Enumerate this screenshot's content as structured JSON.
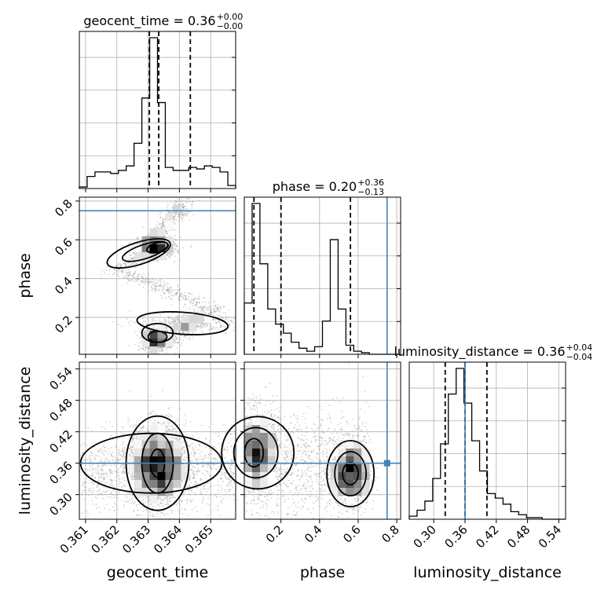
{
  "colors": {
    "truth": "#4682b4",
    "hist": "#000000",
    "samples": "#808080"
  },
  "chart_data": {
    "type": "corner",
    "parameters": [
      "geocent_time",
      "phase",
      "luminosity_distance"
    ],
    "titles": [
      {
        "text": "geocent_time = 0.36",
        "sup": "+0.00",
        "sub": "−0.00"
      },
      {
        "text": "phase = 0.20",
        "sup": "+0.36",
        "sub": "−0.13"
      },
      {
        "text": "luminosity_distance = 0.36",
        "sup": "+0.04",
        "sub": "−0.04"
      }
    ],
    "ranges": [
      [
        0.3608,
        0.3658
      ],
      [
        0.01,
        0.82
      ],
      [
        0.253,
        0.553
      ]
    ],
    "ticks": [
      [
        0.361,
        0.362,
        0.363,
        0.364,
        0.365
      ],
      [
        0.2,
        0.4,
        0.6,
        0.8
      ],
      [
        0.3,
        0.36,
        0.42,
        0.48,
        0.54
      ]
    ],
    "tick_labels": [
      [
        "0.361",
        "0.362",
        "0.363",
        "0.364",
        "0.365"
      ],
      [
        "0.2",
        "0.4",
        "0.6",
        "0.8"
      ],
      [
        "0.30",
        "0.36",
        "0.42",
        "0.48",
        "0.54"
      ]
    ],
    "truths": [
      null,
      0.75,
      0.36
    ],
    "quantiles": [
      [
        0.36304,
        0.36334,
        0.36435
      ],
      [
        0.06,
        0.2,
        0.56
      ],
      [
        0.322,
        0.36,
        0.402
      ]
    ],
    "histograms": [
      {
        "bin_edges_start": 0.3608,
        "bin_width": 0.00025,
        "counts": [
          0.01,
          0.08,
          0.11,
          0.11,
          0.1,
          0.12,
          0.15,
          0.3,
          0.6,
          1.0,
          0.57,
          0.14,
          0.12,
          0.12,
          0.14,
          0.13,
          0.15,
          0.14,
          0.11,
          0.02
        ]
      },
      {
        "bin_edges_start": 0.01,
        "bin_width": 0.0405,
        "counts": [
          0.34,
          1.0,
          0.6,
          0.3,
          0.2,
          0.14,
          0.08,
          0.04,
          0.02,
          0.05,
          0.22,
          0.76,
          0.3,
          0.06,
          0.02,
          0.01,
          0.0,
          0.0,
          0.0,
          0.0
        ]
      },
      {
        "bin_edges_start": 0.253,
        "bin_width": 0.015,
        "counts": [
          0.02,
          0.06,
          0.12,
          0.27,
          0.5,
          0.83,
          1.0,
          0.77,
          0.52,
          0.32,
          0.17,
          0.14,
          0.1,
          0.05,
          0.03,
          0.01,
          0.01,
          0.0,
          0.0,
          0.0
        ]
      }
    ]
  }
}
